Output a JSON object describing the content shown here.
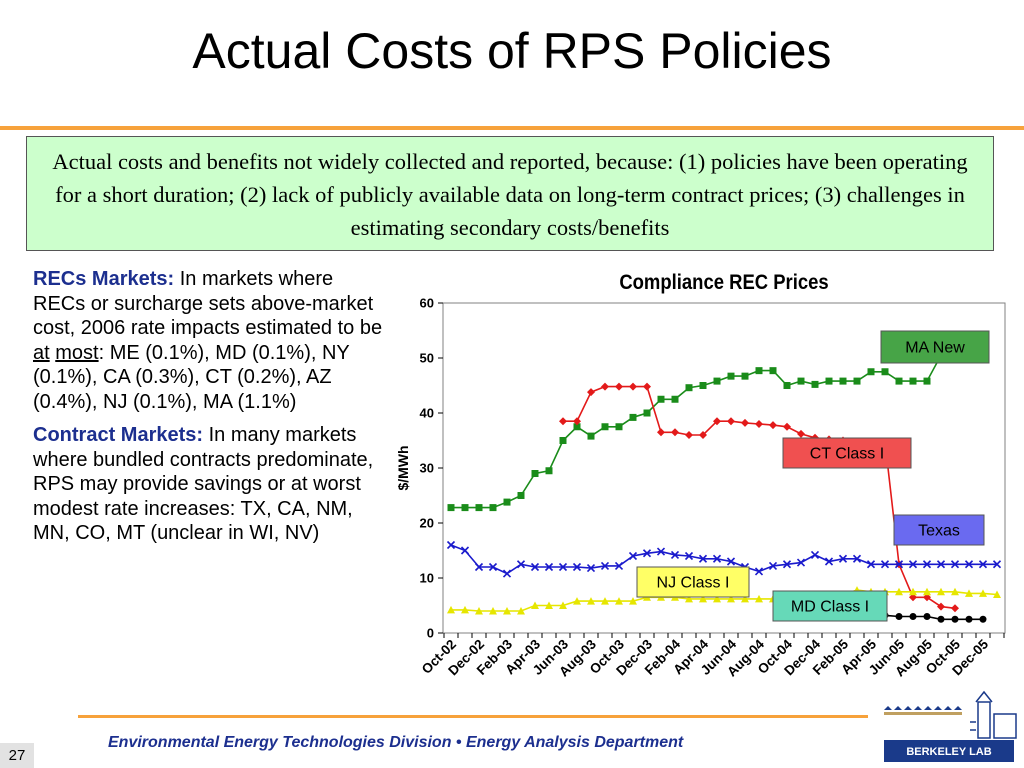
{
  "slide": {
    "title": "Actual Costs of RPS Policies",
    "callout": "Actual costs and benefits not widely collected and reported, because: (1) policies have been operating for a short duration; (2) lack of publicly available data on long-term contract prices; (3) challenges in estimating secondary costs/benefits",
    "recs": {
      "heading": "RECs Markets:",
      "text1": " In markets where RECs or surcharge sets above-market cost, 2006 rate impacts estimated to be ",
      "at": "at",
      "most": "most",
      "text2": ": ME (0.1%), MD (0.1%), NY (0.1%), CA (0.3%), CT (0.2%), AZ (0.4%), NJ (0.1%), MA (1.1%)"
    },
    "contract": {
      "heading": "Contract Markets:",
      "text": "  In many markets where bundled contracts predominate, RPS may provide savings or at worst modest rate increases: TX, CA, NM, MN, CO, MT (unclear in WI, NV)"
    },
    "footer": "Environmental Energy Technologies Division  •  Energy Analysis Department",
    "page_number": "27",
    "logo_text": "BERKELEY LAB"
  },
  "chart_data": {
    "type": "line",
    "title": "Compliance REC Prices",
    "ylabel": "$/MWh",
    "xlabel": "",
    "ylim": [
      0,
      60
    ],
    "yticks": [
      0,
      10,
      20,
      30,
      40,
      50,
      60
    ],
    "grid": false,
    "x_labels": [
      "Oct-02",
      "Dec-02",
      "Feb-03",
      "Apr-03",
      "Jun-03",
      "Aug-03",
      "Oct-03",
      "Dec-03",
      "Feb-04",
      "Apr-04",
      "Jun-04",
      "Aug-04",
      "Oct-04",
      "Dec-04",
      "Feb-05",
      "Apr-05",
      "Jun-05",
      "Aug-05",
      "Oct-05",
      "Dec-05"
    ],
    "n_points": 40,
    "series": [
      {
        "name": "MA New",
        "color": "#1a8c1a",
        "label_bg": "#47a447",
        "marker": "square",
        "start": 0,
        "values": [
          22.8,
          22.8,
          22.8,
          22.8,
          23.8,
          25,
          29,
          29.5,
          35,
          37.5,
          35.8,
          37.5,
          37.5,
          39.2,
          40,
          42.5,
          42.5,
          44.6,
          45,
          45.8,
          46.7,
          46.7,
          47.7,
          47.7,
          45,
          45.8,
          45.2,
          45.8,
          45.8,
          45.8,
          47.5,
          47.5,
          45.8,
          45.8,
          45.8,
          50.5,
          50.5,
          53,
          53.2
        ]
      },
      {
        "name": "CT Class I",
        "color": "#e31a1a",
        "label_bg": "#f05050",
        "marker": "diamond",
        "start": 8,
        "values": [
          38.5,
          38.5,
          43.8,
          44.8,
          44.8,
          44.8,
          44.8,
          36.5,
          36.5,
          36,
          36,
          38.5,
          38.5,
          38.2,
          38,
          37.8,
          37.5,
          36.2,
          35.5,
          35.2,
          35,
          34.5,
          34.8,
          34.8,
          12.5,
          6.5,
          6.5,
          4.8,
          4.5
        ]
      },
      {
        "name": "Texas",
        "color": "#1a1acc",
        "label_bg": "#6a6af0",
        "marker": "x",
        "start": 0,
        "values": [
          16,
          15,
          12,
          12,
          10.8,
          12.5,
          12,
          12,
          12,
          12,
          11.8,
          12.2,
          12.2,
          14,
          14.5,
          14.8,
          14.2,
          14,
          13.5,
          13.5,
          13,
          12,
          11.2,
          12.2,
          12.5,
          12.8,
          14.2,
          13,
          13.5,
          13.5,
          12.5,
          12.5,
          12.5,
          12.5,
          12.5,
          12.5,
          12.5,
          12.5,
          12.5,
          12.5
        ]
      },
      {
        "name": "NJ Class I",
        "color": "#e6e600",
        "label_bg": "#ffff66",
        "marker": "triangle",
        "start": 0,
        "values": [
          4.2,
          4.2,
          4,
          4,
          4,
          4,
          5,
          5,
          5,
          5.8,
          5.8,
          5.8,
          5.8,
          5.8,
          6.5,
          6.5,
          6.5,
          6.2,
          6.2,
          6.2,
          6.2,
          6.2,
          6.2,
          6.2,
          6.2,
          6.8,
          7,
          7,
          7,
          7.8,
          7.5,
          7.5,
          7.5,
          7.5,
          7.5,
          7.5,
          7.5,
          7.2,
          7.2,
          7
        ]
      },
      {
        "name": "MD Class I",
        "color": "#000000",
        "label_bg": "#66d9b8",
        "marker": "circle",
        "start": 27,
        "values": [
          3.5,
          3.5,
          3.5,
          3.5,
          3.2,
          3,
          3,
          3,
          2.5,
          2.5,
          2.5,
          2.5
        ]
      }
    ]
  }
}
